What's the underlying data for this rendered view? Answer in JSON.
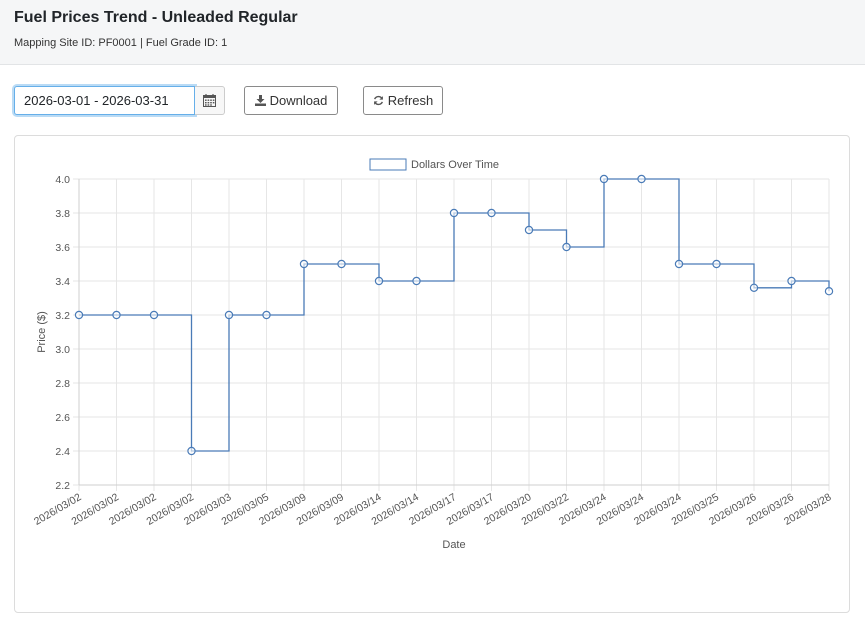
{
  "header": {
    "title": "Fuel Prices Trend - Unleaded Regular",
    "subtitle": "Mapping Site ID: PF0001 | Fuel Grade ID: 1"
  },
  "toolbar": {
    "date_range_value": "2026-03-01 - 2026-03-31",
    "calendar_icon": "calendar-icon",
    "download_label": "Download",
    "download_icon": "download-icon",
    "refresh_label": "Refresh",
    "refresh_icon": "refresh-icon"
  },
  "colors": {
    "series": "#4a7bb7",
    "grid": "#e6e6e6",
    "axis_text": "#555555"
  },
  "chart_data": {
    "type": "line",
    "stepped": true,
    "xlabel": "Date",
    "ylabel": "Price ($)",
    "ylim": [
      2.2,
      4.0
    ],
    "yticks": [
      "4.0",
      "3.8",
      "3.6",
      "3.4",
      "3.2",
      "3.0",
      "2.8",
      "2.6",
      "2.4",
      "2.2"
    ],
    "grid": true,
    "legend_position": "top-center",
    "categories": [
      "2026/03/02",
      "2026/03/02",
      "2026/03/02",
      "2026/03/02",
      "2026/03/03",
      "2026/03/05",
      "2026/03/09",
      "2026/03/09",
      "2026/03/14",
      "2026/03/14",
      "2026/03/17",
      "2026/03/17",
      "2026/03/20",
      "2026/03/22",
      "2026/03/24",
      "2026/03/24",
      "2026/03/24",
      "2026/03/25",
      "2026/03/26",
      "2026/03/26",
      "2026/03/28"
    ],
    "series": [
      {
        "name": "Dollars Over Time",
        "values": [
          3.2,
          3.2,
          3.2,
          2.4,
          3.2,
          3.2,
          3.5,
          3.5,
          3.4,
          3.4,
          3.8,
          3.8,
          3.7,
          3.6,
          4.0,
          4.0,
          3.5,
          3.5,
          3.36,
          3.4,
          3.34
        ]
      }
    ]
  }
}
